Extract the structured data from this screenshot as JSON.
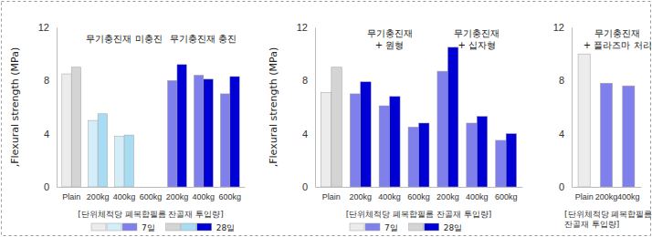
{
  "chart_data": [
    {
      "type": "bar",
      "ylabel": ",Flexural strength (MPa)",
      "xlabel": "[단위체적당 폐복합필름 잔골재 투입량]",
      "categories": [
        "Plain",
        "200kg",
        "400kg",
        "600kg",
        "200kg",
        "400kg",
        "600kg"
      ],
      "annotations": [
        "무기충진재 미충진",
        "무기충진재 충진"
      ],
      "series": [
        {
          "name": "7일",
          "values": [
            8.5,
            5.0,
            3.8,
            null,
            8.0,
            8.4,
            7.0
          ],
          "colors": [
            "#ececec",
            "#d4eef9",
            "#d4eef9",
            "#d4eef9",
            "#8080ec",
            "#8080ec",
            "#8080ec"
          ]
        },
        {
          "name": "28일",
          "values": [
            9.0,
            5.5,
            3.9,
            null,
            9.2,
            8.1,
            8.3
          ],
          "colors": [
            "#d4d4d4",
            "#a8dcf2",
            "#a8dcf2",
            "#a8dcf2",
            "#0000d4",
            "#0000d4",
            "#0000d4"
          ]
        }
      ],
      "ylim": [
        0,
        12
      ],
      "yticks": [
        0,
        4,
        8,
        12
      ],
      "legend": "bottom"
    },
    {
      "type": "bar",
      "ylabel": ",Flexural strength (MPa)",
      "xlabel": "[단위체적당 폐복합필름 잔골재 투입량]",
      "categories": [
        "Plain",
        "200kg",
        "400kg",
        "600kg",
        "200kg",
        "400kg",
        "600kg"
      ],
      "annotations": [
        "무기충진재 + 원형",
        "무기충진재 + 십자형"
      ],
      "series": [
        {
          "name": "7일",
          "values": [
            7.1,
            7.0,
            6.1,
            4.5,
            8.7,
            4.8,
            3.5
          ],
          "colors": [
            "#ececec",
            "#8080ec",
            "#8080ec",
            "#8080ec",
            "#8080ec",
            "#8080ec",
            "#8080ec"
          ]
        },
        {
          "name": "28일",
          "values": [
            9.0,
            7.9,
            6.8,
            4.8,
            10.5,
            5.3,
            4.0
          ],
          "colors": [
            "#d4d4d4",
            "#0000d4",
            "#0000d4",
            "#0000d4",
            "#0000d4",
            "#0000d4",
            "#0000d4"
          ]
        }
      ],
      "ylim": [
        0,
        12
      ],
      "yticks": [
        0,
        4,
        8,
        12
      ],
      "legend": "bottom"
    },
    {
      "type": "bar",
      "xlabel": [
        "[단위체적당 폐복합필름",
        "잔골재 투입량]"
      ],
      "categories": [
        "Plain",
        "200kg",
        "400kg"
      ],
      "annotations": [
        "무기충진재 + 플라즈마 처리"
      ],
      "values": [
        10.0,
        7.8,
        7.6
      ],
      "colors": [
        "#ececec",
        "#8080ec",
        "#8080ec"
      ],
      "ylim": [
        0,
        12
      ],
      "yticks": [
        0,
        4,
        8,
        12
      ]
    }
  ]
}
